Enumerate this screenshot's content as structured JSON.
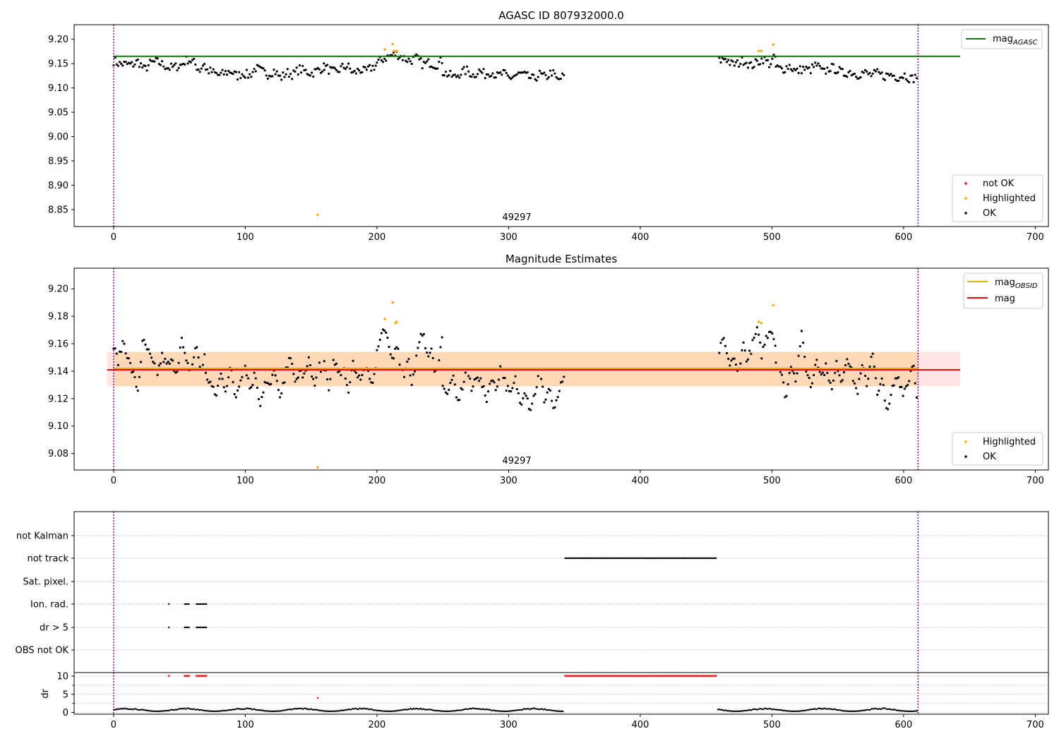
{
  "chart_data": [
    {
      "type": "scatter",
      "title": "AGASC ID 807932000.0",
      "xlim": [
        -30,
        710
      ],
      "ylim": [
        8.815,
        9.23
      ],
      "xticks": [
        0,
        100,
        200,
        300,
        400,
        500,
        600,
        700
      ],
      "yticks": [
        8.85,
        8.9,
        8.95,
        9.0,
        9.05,
        9.1,
        9.15,
        9.2
      ],
      "ytick_labels": [
        "8.85",
        "8.90",
        "8.95",
        "9.00",
        "9.05",
        "9.10",
        "9.15",
        "9.20"
      ],
      "annotation": {
        "text": "49297",
        "x": 306,
        "y": 8.83
      },
      "obsid_boundaries": [
        0,
        611
      ],
      "reference_line": {
        "name": "mag",
        "subscript": "AGASC",
        "value": 9.165,
        "x_range": [
          0,
          643
        ],
        "color": "#008000"
      },
      "legend_upper": {
        "position": "upper right",
        "entries": [
          {
            "label": "mag",
            "subscript": "AGASC",
            "kind": "line",
            "color": "#008000"
          }
        ]
      },
      "legend_lower": {
        "position": "lower right",
        "entries": [
          {
            "label": "not OK",
            "kind": "marker",
            "color": "#ff0000"
          },
          {
            "label": "Highlighted",
            "kind": "marker",
            "color": "#ffa500"
          },
          {
            "label": "OK",
            "kind": "marker",
            "color": "#000000"
          }
        ]
      },
      "ok_segments": [
        {
          "x_range": [
            0,
            70
          ],
          "y": [
            9.156,
            9.149,
            9.149,
            9.147,
            9.155,
            9.137,
            9.151,
            9.154,
            9.148,
            9.141,
            9.143,
            9.147,
            9.159,
            9.153,
            9.136,
            9.157
          ]
        },
        {
          "x_range": [
            70,
            160
          ],
          "y": [
            9.137,
            9.133,
            9.126,
            9.13,
            9.135,
            9.124,
            9.131,
            9.125,
            9.141,
            9.134,
            9.128,
            9.136,
            9.12,
            9.132,
            9.127,
            9.139,
            9.134,
            9.13,
            9.137,
            9.143
          ]
        },
        {
          "x_range": [
            160,
            200
          ],
          "y": [
            9.144,
            9.136,
            9.131,
            9.142,
            9.145,
            9.129,
            9.138,
            9.133,
            9.141,
            9.147
          ]
        },
        {
          "x_range": [
            200,
            250
          ],
          "y": [
            9.151,
            9.16,
            9.166,
            9.17,
            9.162,
            9.156,
            9.161,
            9.148,
            9.152,
            9.147,
            9.158
          ]
        },
        {
          "x_range": [
            250,
            342
          ],
          "y": [
            9.133,
            9.127,
            9.122,
            9.132,
            9.136,
            9.126,
            9.135,
            9.128,
            9.134,
            9.124,
            9.13,
            9.12,
            9.126,
            9.129,
            9.123,
            9.118,
            9.128,
            9.121,
            9.133,
            9.115,
            9.125
          ]
        },
        {
          "x_range": [
            460,
            503
          ],
          "y": [
            9.155,
            9.162,
            9.148,
            9.15,
            9.158,
            9.145,
            9.152,
            9.16,
            9.149,
            9.165
          ]
        },
        {
          "x_range": [
            503,
            611
          ],
          "y": [
            9.142,
            9.138,
            9.146,
            9.133,
            9.14,
            9.136,
            9.148,
            9.131,
            9.142,
            9.138,
            9.129,
            9.134,
            9.127,
            9.132,
            9.126,
            9.13,
            9.124,
            9.128,
            9.122,
            9.127,
            9.118,
            9.125
          ]
        }
      ],
      "highlighted_points": [
        [
          155,
          8.839
        ],
        [
          206,
          9.179
        ],
        [
          212,
          9.19
        ],
        [
          213,
          9.176
        ],
        [
          215,
          9.176
        ],
        [
          490,
          9.176
        ],
        [
          492,
          9.176
        ],
        [
          501,
          9.189
        ]
      ]
    },
    {
      "type": "scatter",
      "title": "Magnitude Estimates",
      "xlim": [
        -30,
        710
      ],
      "ylim": [
        9.068,
        9.215
      ],
      "xticks": [
        0,
        100,
        200,
        300,
        400,
        500,
        600,
        700
      ],
      "yticks": [
        9.08,
        9.1,
        9.12,
        9.14,
        9.16,
        9.18,
        9.2
      ],
      "ytick_labels": [
        "9.08",
        "9.10",
        "9.12",
        "9.14",
        "9.16",
        "9.18",
        "9.20"
      ],
      "annotation": {
        "text": "49297",
        "x": 306,
        "y": 9.073
      },
      "obsid_boundaries": [
        0,
        611
      ],
      "mag_obsid": {
        "name": "mag",
        "subscript": "OBSID",
        "value": 9.142,
        "band": [
          9.129,
          9.154
        ],
        "x_range": [
          0,
          611
        ],
        "color": "#ffa500"
      },
      "mag": {
        "name": "mag",
        "value": 9.141,
        "band": [
          9.129,
          9.154
        ],
        "x_range": [
          -5,
          643
        ],
        "color": "#ff0000"
      },
      "legend_upper": {
        "position": "upper right",
        "entries": [
          {
            "label": "mag",
            "subscript": "OBSID",
            "kind": "line",
            "color": "#ffa500"
          },
          {
            "label": "mag",
            "kind": "line",
            "color": "#ff0000"
          }
        ]
      },
      "legend_lower": {
        "position": "lower right",
        "entries": [
          {
            "label": "Highlighted",
            "kind": "marker",
            "color": "#ffa500"
          },
          {
            "label": "OK",
            "kind": "marker",
            "color": "#000000"
          }
        ]
      },
      "ok_segments": [
        {
          "x_range": [
            0,
            70
          ],
          "y": [
            9.157,
            9.147,
            9.163,
            9.149,
            9.138,
            9.126,
            9.162,
            9.155,
            9.146,
            9.138,
            9.151,
            9.144,
            9.147,
            9.139,
            9.163,
            9.145,
            9.141,
            9.159,
            9.14,
            9.155
          ]
        },
        {
          "x_range": [
            70,
            160
          ],
          "y": [
            9.137,
            9.131,
            9.121,
            9.138,
            9.127,
            9.143,
            9.12,
            9.135,
            9.145,
            9.126,
            9.139,
            9.116,
            9.132,
            9.128,
            9.142,
            9.118,
            9.134,
            9.155,
            9.13,
            9.14,
            9.136,
            9.149,
            9.128,
            9.145,
            9.137
          ]
        },
        {
          "x_range": [
            160,
            200
          ],
          "y": [
            9.145,
            9.127,
            9.151,
            9.136,
            9.141,
            9.125,
            9.148,
            9.133,
            9.139,
            9.144,
            9.13,
            9.146
          ]
        },
        {
          "x_range": [
            200,
            250
          ],
          "y": [
            9.155,
            9.164,
            9.17,
            9.158,
            9.148,
            9.162,
            9.145,
            9.137,
            9.152,
            9.129,
            9.147,
            9.16,
            9.172,
            9.148,
            9.158,
            9.135,
            9.15,
            9.166
          ]
        },
        {
          "x_range": [
            250,
            342
          ],
          "y": [
            9.132,
            9.121,
            9.138,
            9.116,
            9.128,
            9.142,
            9.125,
            9.139,
            9.131,
            9.119,
            9.136,
            9.126,
            9.145,
            9.13,
            9.122,
            9.134,
            9.116,
            9.128,
            9.112,
            9.124,
            9.14,
            9.118,
            9.129,
            9.109,
            9.126,
            9.133
          ]
        },
        {
          "x_range": [
            460,
            503
          ],
          "y": [
            9.155,
            9.163,
            9.145,
            9.15,
            9.137,
            9.161,
            9.147,
            9.159,
            9.17,
            9.152,
            9.165,
            9.172,
            9.158
          ]
        },
        {
          "x_range": [
            503,
            611
          ],
          "y": [
            9.147,
            9.139,
            9.12,
            9.146,
            9.134,
            9.168,
            9.141,
            9.128,
            9.151,
            9.136,
            9.144,
            9.125,
            9.146,
            9.132,
            9.152,
            9.138,
            9.124,
            9.143,
            9.13,
            9.158,
            9.121,
            9.134,
            9.108,
            9.128,
            9.137,
            9.125,
            9.131,
            9.148,
            9.115
          ]
        }
      ],
      "highlighted_points": [
        [
          155,
          9.07
        ],
        [
          206,
          9.178
        ],
        [
          212,
          9.19
        ],
        [
          214,
          9.175
        ],
        [
          215,
          9.176
        ],
        [
          490,
          9.176
        ],
        [
          492,
          9.175
        ],
        [
          501,
          9.188
        ]
      ]
    },
    {
      "type": "scatter",
      "title": "",
      "xlim": [
        -30,
        710
      ],
      "xticks": [
        0,
        100,
        200,
        300,
        400,
        500,
        600,
        700
      ],
      "obsid_boundaries": [
        0,
        611
      ],
      "flag_rows": [
        "not Kalman",
        "not track",
        "Sat. pixel.",
        "Ion. rad.",
        "dr > 5",
        "OBS not OK"
      ],
      "flags": {
        "not Kalman": [],
        "not track": [
          [
            343,
            458
          ]
        ],
        "Sat. pixel.": [],
        "Ion. rad.": [
          [
            42,
            42
          ],
          [
            54,
            58
          ],
          [
            63,
            71
          ]
        ],
        "dr > 5": [
          [
            42,
            42
          ],
          [
            54,
            58
          ],
          [
            63,
            71
          ]
        ],
        "OBS not OK": []
      },
      "dr": {
        "ylabel": "dr",
        "yticks": [
          0,
          5,
          10
        ],
        "ylim": [
          -0.5,
          11
        ],
        "baseline_segments": [
          [
            0,
            342
          ],
          [
            459,
            611
          ]
        ],
        "baseline_level": [
          0.3,
          1.2
        ],
        "clipped_value": 10,
        "clipped_ranges": [
          [
            42,
            42
          ],
          [
            54,
            58
          ],
          [
            63,
            71
          ],
          [
            343,
            458
          ]
        ],
        "outlier_points": [
          [
            155,
            4
          ]
        ]
      }
    }
  ]
}
